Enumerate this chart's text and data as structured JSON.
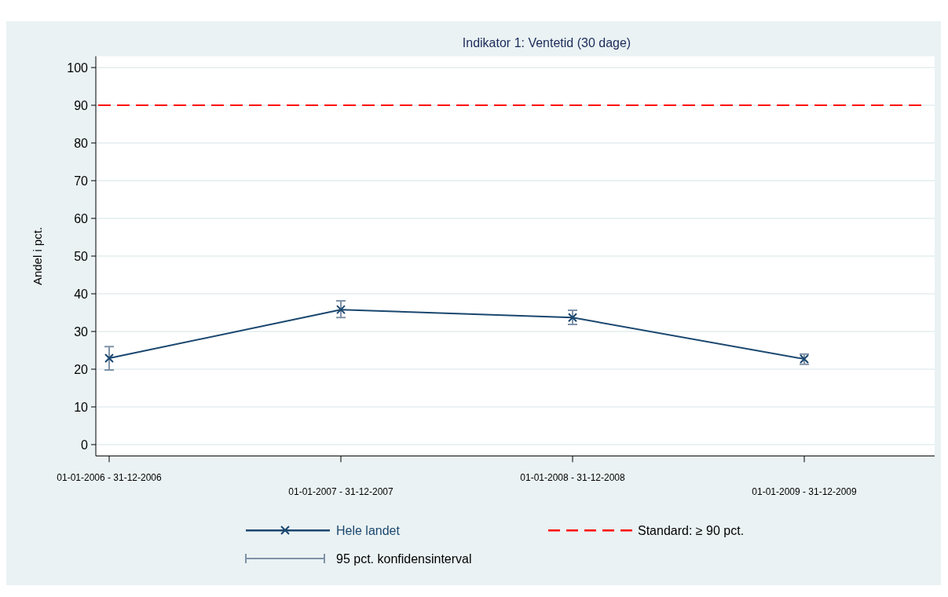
{
  "chart_data": {
    "type": "line",
    "title": "Indikator 1: Ventetid (30 dage)",
    "ylabel": "Andel i pct.",
    "categories": [
      "01-01-2006 - 31-12-2006",
      "01-01-2007 - 31-12-2007",
      "01-01-2008 - 31-12-2008",
      "01-01-2009 - 31-12-2009"
    ],
    "series": [
      {
        "name": "Hele landet",
        "color": "#1a476f",
        "values": [
          22.9,
          35.8,
          33.7,
          22.7
        ],
        "errors": [
          [
            19.8,
            26.0
          ],
          [
            33.7,
            38.1
          ],
          [
            31.9,
            35.6
          ],
          [
            21.3,
            24.0
          ]
        ]
      }
    ],
    "ylim": [
      -3,
      103
    ],
    "yticks": [
      0,
      10,
      20,
      30,
      40,
      50,
      60,
      70,
      80,
      90,
      100
    ],
    "ref_lines": [
      {
        "axis": "y",
        "value": 90,
        "label": "Standard: ≥ 90 pct.",
        "color": "#ff0000",
        "line_style": "dashed"
      }
    ],
    "annotations": [
      "95 pct. konfidensinterval"
    ],
    "grid": "y",
    "legend": "bottom",
    "marker": "cross",
    "line_style": "solid"
  }
}
